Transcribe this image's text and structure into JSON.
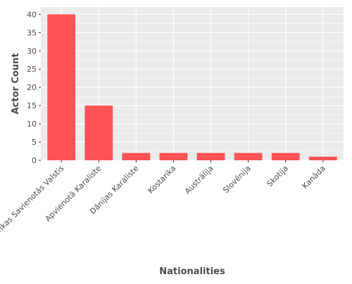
{
  "chart_data": {
    "type": "bar",
    "categories": [
      "Amerikas Savienotās Valstis",
      "Apvienotā Karaliste",
      "Dānijas Karaliste",
      "Kostarika",
      "Austrālija",
      "Slovēnija",
      "Skotija",
      "Kanāda"
    ],
    "values": [
      40,
      15,
      2,
      2,
      2,
      2,
      2,
      1
    ],
    "xlabel": "Nationalities",
    "ylabel": "Actor Count",
    "ylim": [
      0,
      42
    ],
    "yticks": [
      0,
      5,
      10,
      15,
      20,
      25,
      30,
      35,
      40
    ],
    "grid": true,
    "legend": "none"
  },
  "colors": {
    "bar": "#ff5357",
    "panel_background": "#ebebeb",
    "grid": "#ffffff",
    "tick_text": "#4d4d4d",
    "axis_title": "#4d4d4d"
  }
}
